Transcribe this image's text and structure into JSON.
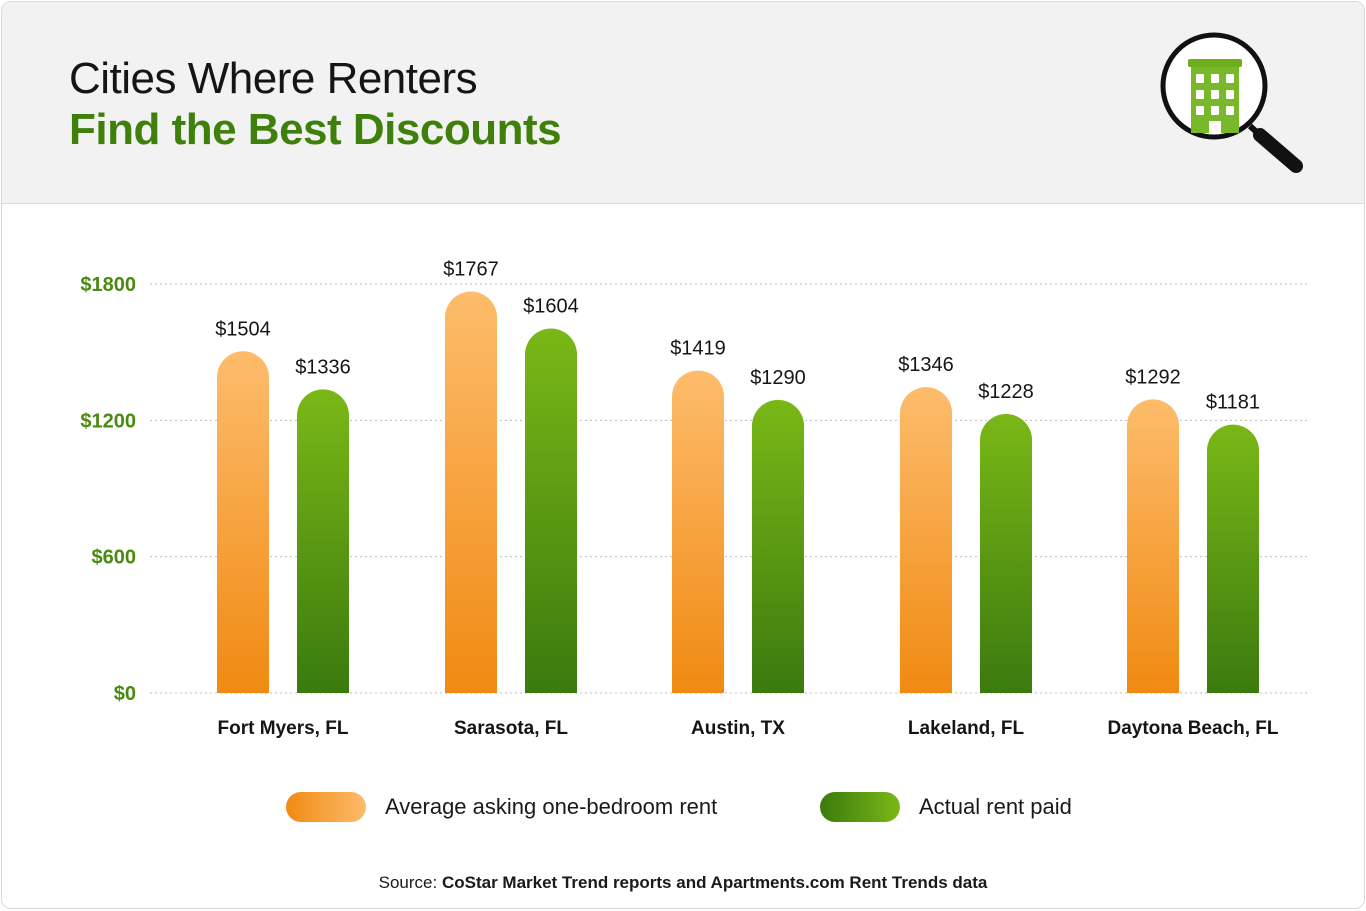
{
  "header": {
    "title_line1": "Cities Where Renters",
    "title_line2": "Find the Best Discounts",
    "icon": "building-magnifier-icon"
  },
  "colors": {
    "orange_top": "#fdbc6c",
    "orange_bottom": "#f08a12",
    "green_top": "#7ab817",
    "green_bottom": "#3b7a0e",
    "axis_label": "#4a8a10",
    "title_green": "#3f7f0b"
  },
  "chart_data": {
    "type": "bar",
    "categories": [
      "Fort Myers, FL",
      "Sarasota, FL",
      "Austin, TX",
      "Lakeland, FL",
      "Daytona Beach, FL"
    ],
    "series": [
      {
        "name": "Average asking one-bedroom rent",
        "values": [
          1504,
          1767,
          1419,
          1346,
          1292
        ],
        "labels": [
          "$1504",
          "$1767",
          "$1419",
          "$1346",
          "$1292"
        ]
      },
      {
        "name": "Actual rent paid",
        "values": [
          1336,
          1604,
          1290,
          1228,
          1181
        ],
        "labels": [
          "$1336",
          "$1604",
          "$1290",
          "$1228",
          "$1181"
        ]
      }
    ],
    "y_ticks": [
      0,
      600,
      1200,
      1800
    ],
    "y_tick_labels": [
      "$0",
      "$600",
      "$1200",
      "$1800"
    ],
    "ylim": [
      0,
      1800
    ],
    "grid": true,
    "legend_position": "bottom"
  },
  "legend": {
    "item1": "Average asking one-bedroom rent",
    "item2": "Actual rent paid"
  },
  "source": {
    "prefix": "Source: ",
    "text": "CoStar Market Trend reports and Apartments.com Rent Trends data"
  }
}
